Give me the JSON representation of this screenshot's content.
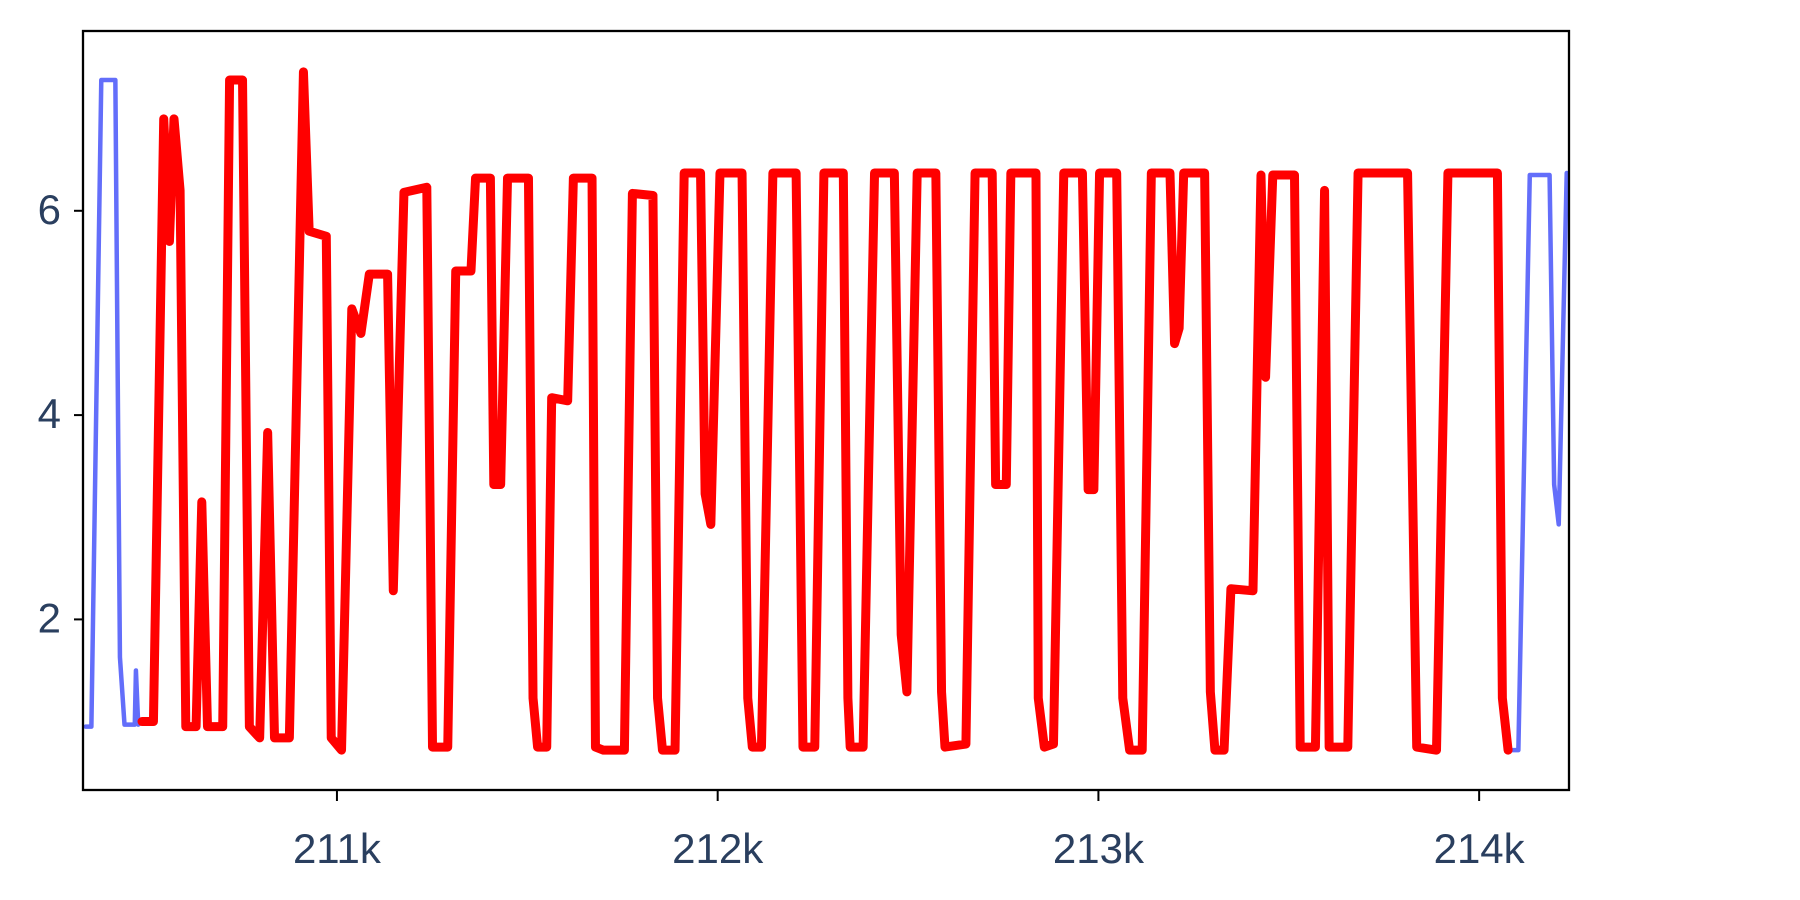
{
  "chart_data": {
    "type": "line",
    "xlim": [
      210333,
      214236
    ],
    "ylim": [
      0.33,
      7.76
    ],
    "xticks": [
      {
        "value": 211000,
        "label": "211k"
      },
      {
        "value": 212000,
        "label": "212k"
      },
      {
        "value": 213000,
        "label": "213k"
      },
      {
        "value": 214000,
        "label": "214k"
      }
    ],
    "yticks": [
      2,
      4,
      6
    ],
    "grid": false,
    "series": [
      {
        "color": "#636efa",
        "x": [
          210340,
          210355,
          210381,
          210418,
          210430,
          210442,
          210469,
          210472,
          210478,
          210488,
          212000,
          214076,
          214103,
          214133,
          214185,
          214197,
          214209,
          214230
        ],
        "values": [
          0.95,
          0.95,
          7.28,
          7.28,
          1.63,
          0.97,
          0.97,
          1.5,
          0.97,
          1.0,
          null,
          0.72,
          0.72,
          6.35,
          6.35,
          3.32,
          2.93,
          6.37
        ]
      },
      {
        "color": "#ff0000",
        "x": [
          210488,
          210518,
          210545,
          210560,
          210572,
          210588,
          210603,
          210630,
          210645,
          210660,
          210700,
          210718,
          210752,
          210770,
          210797,
          210818,
          210836,
          210875,
          210912,
          210927,
          210972,
          210985,
          211012,
          211039,
          211063,
          211085,
          211133,
          211148,
          211176,
          211236,
          211251,
          211291,
          211312,
          211352,
          211364,
          211403,
          211412,
          211430,
          211448,
          211503,
          211515,
          211527,
          211551,
          211564,
          211606,
          211621,
          211670,
          211679,
          211700,
          211755,
          211776,
          211830,
          211842,
          211855,
          211888,
          211912,
          211955,
          211967,
          211982,
          212006,
          212064,
          212079,
          212091,
          212115,
          212145,
          212206,
          212224,
          212255,
          212279,
          212330,
          212342,
          212348,
          212382,
          212412,
          212464,
          212482,
          212497,
          212524,
          212573,
          212588,
          212597,
          212652,
          212676,
          212721,
          212730,
          212758,
          212770,
          212836,
          212842,
          212858,
          212882,
          212909,
          212958,
          212973,
          212988,
          213003,
          213048,
          213064,
          213082,
          213115,
          213139,
          213188,
          213200,
          213212,
          213224,
          213279,
          213294,
          213306,
          213330,
          213348,
          213406,
          213427,
          213439,
          213458,
          213515,
          213530,
          213570,
          213594,
          213606,
          213655,
          213682,
          213812,
          213836,
          213888,
          213918,
          214048,
          214061,
          214076
        ],
        "values": [
          1.0,
          1.0,
          6.9,
          5.7,
          6.9,
          6.2,
          0.95,
          0.95,
          3.15,
          0.95,
          0.95,
          7.28,
          7.28,
          0.95,
          0.84,
          3.83,
          0.84,
          0.84,
          7.36,
          5.8,
          5.75,
          0.84,
          0.72,
          5.04,
          4.8,
          5.38,
          5.38,
          2.28,
          6.18,
          6.23,
          0.75,
          0.75,
          5.41,
          5.41,
          6.32,
          6.32,
          3.32,
          3.32,
          6.32,
          6.32,
          1.23,
          0.75,
          0.75,
          4.17,
          4.14,
          6.32,
          6.32,
          0.75,
          0.72,
          0.72,
          6.17,
          6.15,
          1.23,
          0.72,
          0.72,
          6.37,
          6.37,
          3.23,
          2.93,
          6.37,
          6.37,
          1.23,
          0.75,
          0.75,
          6.37,
          6.37,
          0.75,
          0.75,
          6.37,
          6.37,
          1.23,
          0.75,
          0.75,
          6.37,
          6.37,
          1.85,
          1.29,
          6.37,
          6.37,
          1.29,
          0.75,
          0.78,
          6.37,
          6.37,
          3.32,
          3.32,
          6.37,
          6.37,
          1.23,
          0.75,
          0.78,
          6.37,
          6.37,
          3.27,
          3.27,
          6.37,
          6.37,
          1.23,
          0.72,
          0.72,
          6.37,
          6.37,
          4.7,
          4.85,
          6.37,
          6.37,
          1.29,
          0.72,
          0.72,
          2.3,
          2.28,
          6.35,
          4.37,
          6.35,
          6.35,
          0.75,
          0.75,
          6.2,
          0.75,
          0.75,
          6.37,
          6.37,
          0.75,
          0.72,
          6.37,
          6.37,
          1.23,
          0.72
        ]
      }
    ]
  }
}
